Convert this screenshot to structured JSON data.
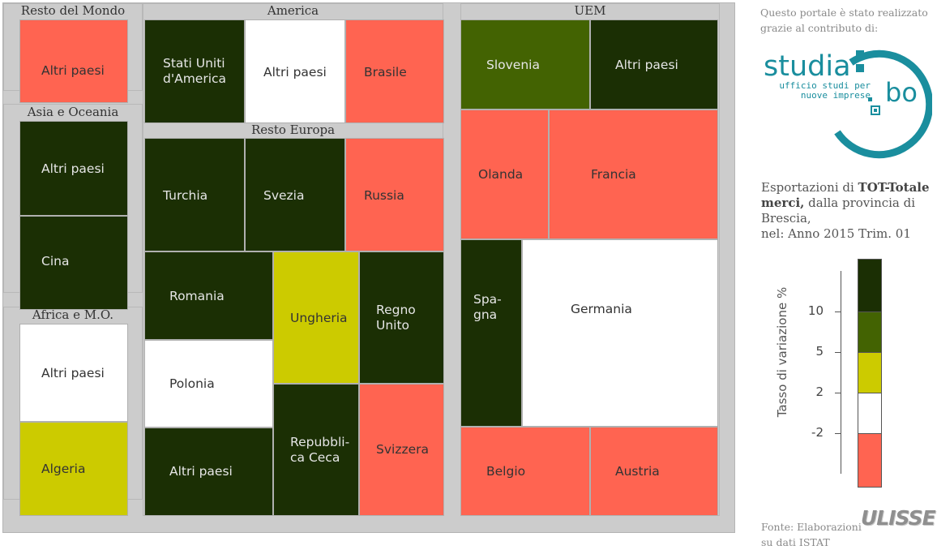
{
  "colors": {
    "dark_green": "#1b2f04",
    "olive_green": "#436302",
    "yellow": "#cccb00",
    "white": "#ffffff",
    "red": "#ff6451"
  },
  "note_text": [
    "Questo portale è stato realizzato",
    "grazie al contributo di:"
  ],
  "logo": {
    "name": "studia",
    "suffix": "bo",
    "tagline_1": "ufficio studi per",
    "tagline_2": "nuove imprese"
  },
  "description": {
    "prefix": "Esportazioni di ",
    "bold": "TOT-Totale merci,",
    "suffix": " dalla provincia di Brescia,",
    "period": "nel: Anno 2015 Trim. 01"
  },
  "legend": {
    "title": "Tasso di variazione %",
    "ticks": [
      "10",
      "5",
      "2",
      "-2"
    ]
  },
  "source": {
    "line1": "Fonte: Elaborazioni",
    "line2": "su dati ISTAT",
    "brand": "ULISSE"
  },
  "chart_data": {
    "type": "treemap",
    "title": "Esportazioni di TOT-Totale merci, dalla provincia di Brescia, nel: Anno 2015 Trim. 01",
    "color_scale": {
      "label": "Tasso di variazione %",
      "bins": [
        {
          "range": "> 10",
          "color": "#1b2f04"
        },
        {
          "range": "5 – 10",
          "color": "#436302"
        },
        {
          "range": "2 – 5",
          "color": "#cccb00"
        },
        {
          "range": "-2 – 2",
          "color": "#ffffff"
        },
        {
          "range": "< -2",
          "color": "#ff6451"
        }
      ]
    },
    "groups": [
      {
        "name": "Resto del Mondo",
        "tiles": [
          {
            "label": "Altri paesi",
            "bin": "< -2"
          }
        ]
      },
      {
        "name": "Asia e Oceania",
        "tiles": [
          {
            "label": "Altri paesi",
            "bin": "> 10"
          },
          {
            "label": "Cina",
            "bin": "> 10"
          }
        ]
      },
      {
        "name": "Africa e M.O.",
        "tiles": [
          {
            "label": "Altri paesi",
            "bin": "-2 – 2"
          },
          {
            "label": "Algeria",
            "bin": "2 – 5"
          }
        ]
      },
      {
        "name": "America",
        "tiles": [
          {
            "label": "Stati Uniti\nd'America",
            "bin": "> 10"
          },
          {
            "label": "Altri paesi",
            "bin": "-2 – 2"
          },
          {
            "label": "Brasile",
            "bin": "< -2"
          }
        ]
      },
      {
        "name": "Resto Europa",
        "tiles": [
          {
            "label": "Turchia",
            "bin": "> 10"
          },
          {
            "label": "Svezia",
            "bin": "> 10"
          },
          {
            "label": "Russia",
            "bin": "< -2"
          },
          {
            "label": "Romania",
            "bin": "> 10"
          },
          {
            "label": "Polonia",
            "bin": "-2 – 2"
          },
          {
            "label": "Altri paesi",
            "bin": "> 10"
          },
          {
            "label": "Ungheria",
            "bin": "2 – 5"
          },
          {
            "label": "Repubbli-\nca Ceca",
            "bin": "> 10"
          },
          {
            "label": "Regno\nUnito",
            "bin": "> 10"
          },
          {
            "label": "Svizzera",
            "bin": "< -2"
          }
        ]
      },
      {
        "name": "UEM",
        "tiles": [
          {
            "label": "Slovenia",
            "bin": "5 – 10"
          },
          {
            "label": "Altri paesi",
            "bin": "> 10"
          },
          {
            "label": "Olanda",
            "bin": "< -2"
          },
          {
            "label": "Francia",
            "bin": "< -2"
          },
          {
            "label": "Spa-\ngna",
            "bin": "> 10"
          },
          {
            "label": "Germania",
            "bin": "-2 – 2"
          },
          {
            "label": "Belgio",
            "bin": "< -2"
          },
          {
            "label": "Austria",
            "bin": "< -2"
          }
        ]
      }
    ]
  }
}
